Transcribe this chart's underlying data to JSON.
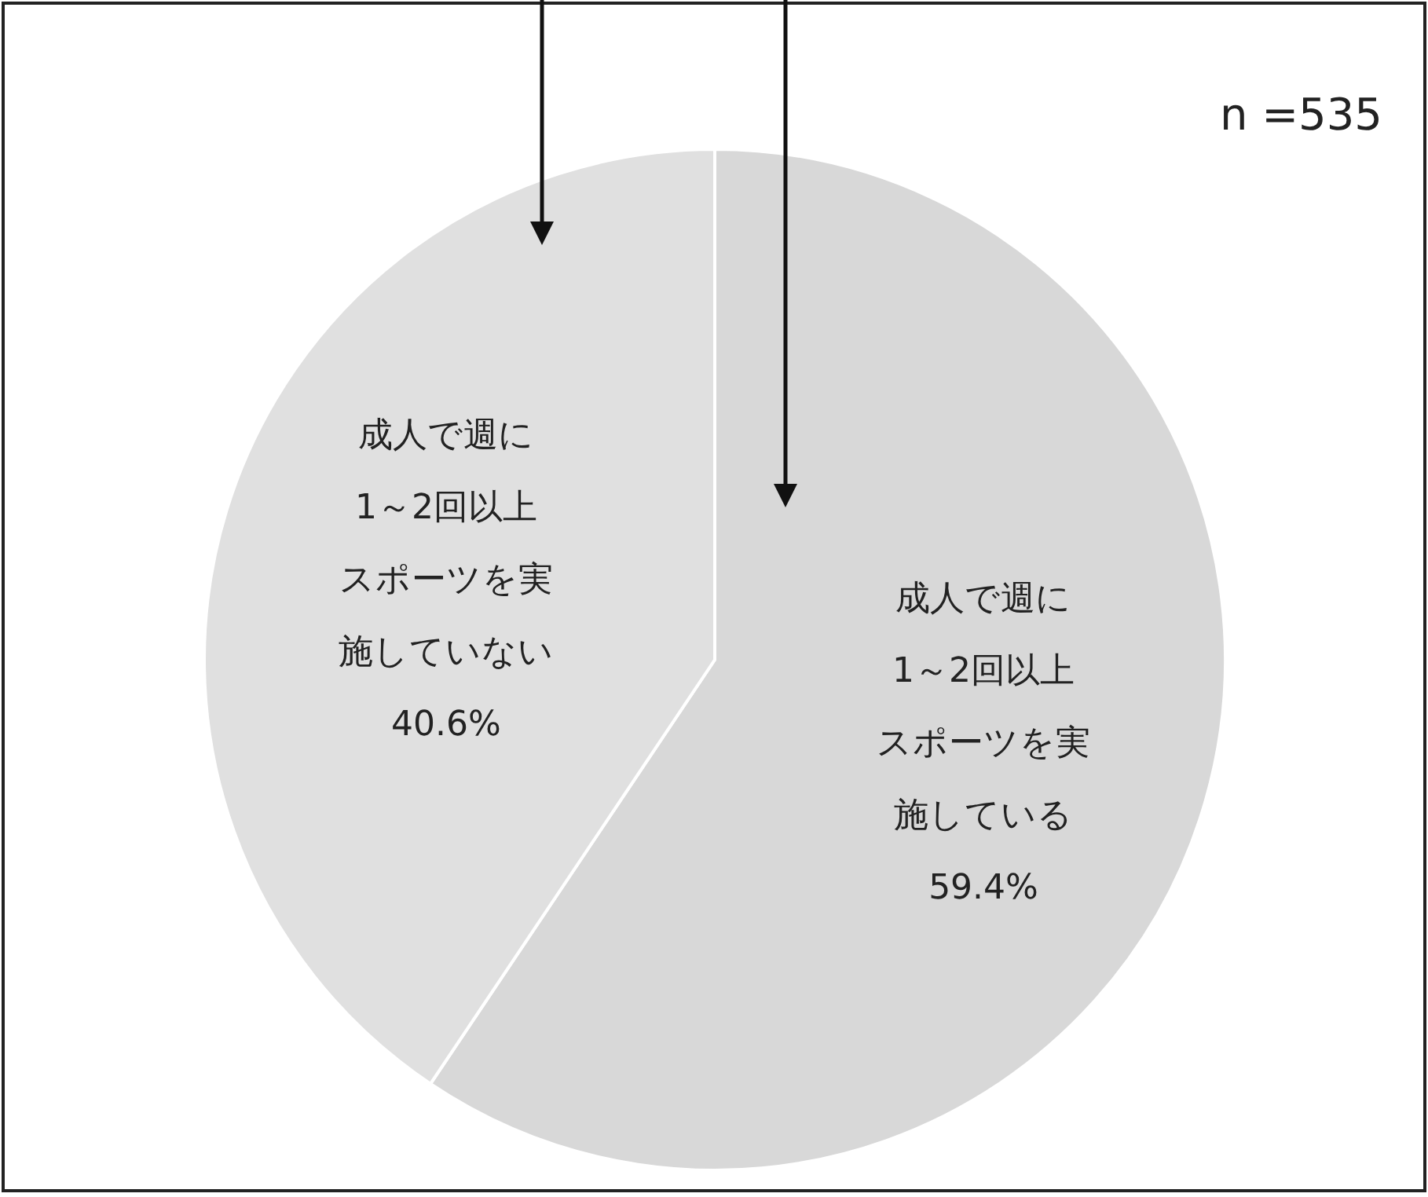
{
  "chart_data": {
    "type": "pie",
    "categories": [
      "成人で週に1～2回以上スポーツを実施している",
      "成人で週に1～2回以上スポーツを実施していない"
    ],
    "values": [
      59.4,
      40.6
    ],
    "value_labels": [
      "59.4%",
      "40.6%"
    ],
    "colors": [
      "#d8d8d8",
      "#e0e0e0"
    ],
    "annotations": [
      "n =535"
    ]
  }
}
